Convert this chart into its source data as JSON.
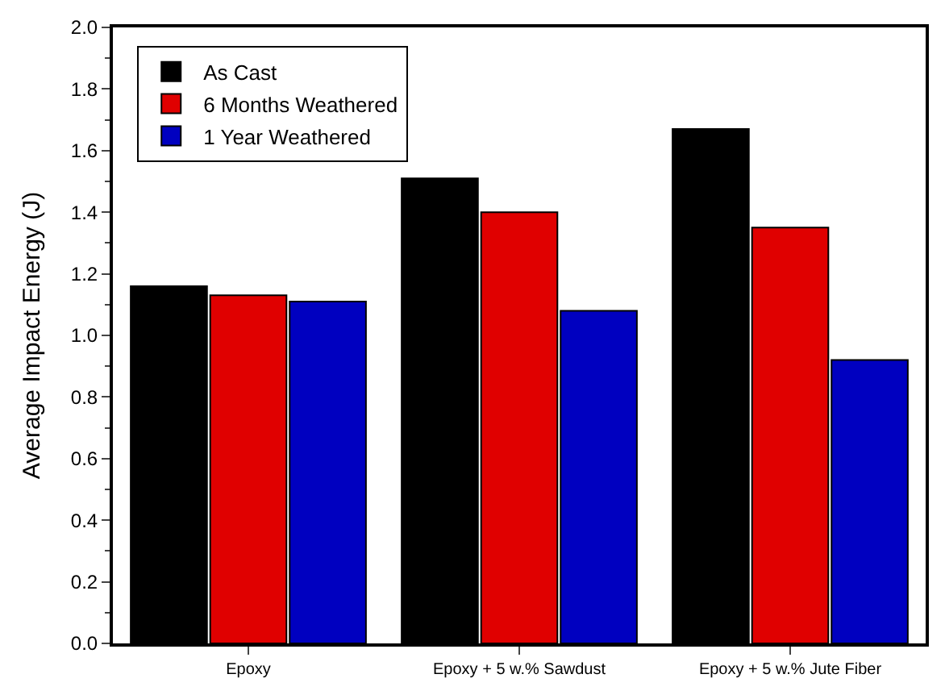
{
  "chart_data": {
    "type": "bar",
    "ylabel": "Average Impact Energy (J)",
    "categories": [
      "Epoxy",
      "Epoxy + 5 w.% Sawdust",
      "Epoxy + 5 w.% Jute Fiber"
    ],
    "series": [
      {
        "name": "As Cast",
        "color": "#000000",
        "values": [
          1.16,
          1.51,
          1.67
        ]
      },
      {
        "name": "6 Months Weathered",
        "color": "#e00000",
        "values": [
          1.13,
          1.4,
          1.35
        ]
      },
      {
        "name": "1 Year Weathered",
        "color": "#0000c0",
        "values": [
          1.11,
          1.08,
          0.92
        ]
      }
    ],
    "ylim": [
      0,
      2.0
    ],
    "yticks": [
      {
        "value": 0,
        "label": "0.0"
      },
      0.2,
      0.4,
      0.6,
      0.8,
      {
        "value": 1,
        "label": "1.0"
      },
      1.2,
      1.4,
      1.6,
      1.8,
      {
        "value": 2,
        "label": "2.0"
      }
    ],
    "legend": "top left"
  }
}
